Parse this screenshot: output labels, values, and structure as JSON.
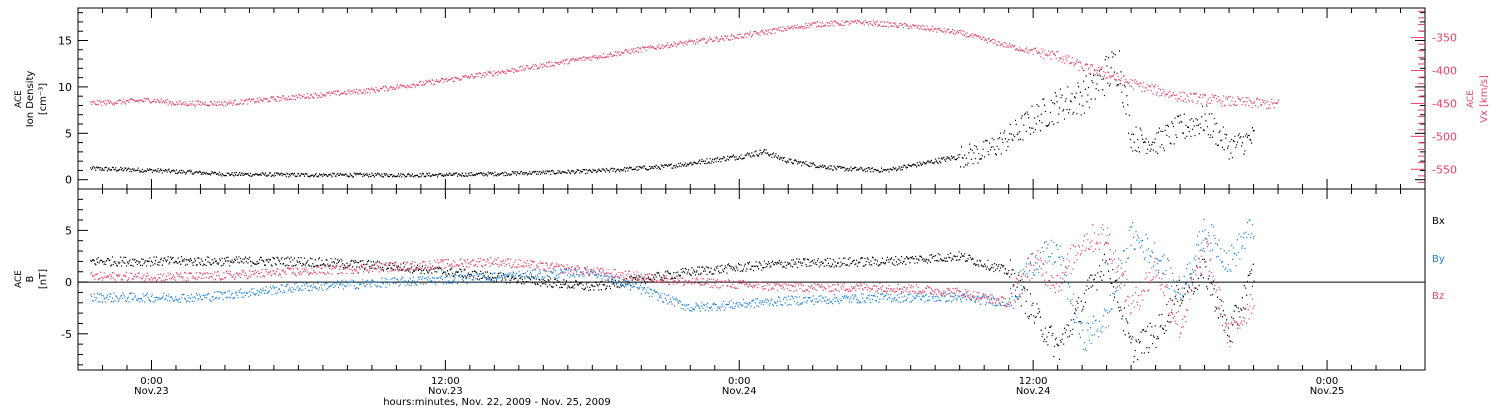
{
  "colors": {
    "black": "#000000",
    "blue": "#1a80e0",
    "pink": "#e8406a"
  },
  "chart_data": [
    {
      "type": "scatter",
      "panel": "top",
      "ylabel_lines": [
        "ACE",
        "Ion Density",
        "[cm⁻³]"
      ],
      "y_ticks": [
        0,
        5,
        10,
        15
      ],
      "ylim": [
        -1,
        18.5
      ],
      "right_ylabel_lines": [
        "ACE",
        "Vx [km/s]"
      ],
      "right_y_ticks": [
        -350,
        -400,
        -450,
        -500,
        -550
      ],
      "right_ylim": [
        -580,
        -305
      ],
      "series": [
        {
          "label": "Ion Density",
          "axis": "left",
          "color": "#000000",
          "x": [
            -2.5,
            0,
            3,
            6,
            9,
            12,
            15,
            18,
            21,
            24,
            25,
            26,
            28,
            30,
            32,
            34,
            35,
            36,
            37,
            38,
            38.5,
            39,
            39.5,
            40,
            41,
            42,
            43,
            44,
            45
          ],
          "y": [
            1.2,
            1.0,
            0.6,
            0.5,
            0.5,
            0.5,
            0.7,
            0.9,
            1.4,
            2.5,
            3.0,
            2.0,
            1.2,
            1.0,
            2.0,
            3.0,
            4.5,
            6.5,
            8.0,
            9.0,
            10.0,
            11.5,
            12.5,
            4.5,
            4.0,
            5.5,
            6.5,
            3.5,
            4.5
          ]
        },
        {
          "label": "Vx",
          "axis": "right",
          "color": "#e8406a",
          "x": [
            -2.5,
            0,
            1,
            3,
            6,
            9,
            12,
            15,
            18,
            21,
            24,
            27,
            29,
            31,
            33,
            35,
            36,
            37,
            38,
            39,
            40,
            42,
            44,
            46
          ],
          "y": [
            -450,
            -445,
            -450,
            -450,
            -440,
            -430,
            -415,
            -398,
            -380,
            -362,
            -348,
            -330,
            -327,
            -333,
            -343,
            -363,
            -372,
            -378,
            -395,
            -405,
            -420,
            -440,
            -447,
            -452
          ]
        }
      ]
    },
    {
      "type": "scatter",
      "panel": "bottom",
      "ylabel_lines": [
        "ACE",
        "B",
        "[nT]"
      ],
      "y_ticks": [
        -5,
        0,
        5
      ],
      "ylim": [
        -8.5,
        9
      ],
      "legend": [
        "Bx",
        "By",
        "Bz"
      ],
      "series": [
        {
          "name": "Bx",
          "color": "#000000",
          "x": [
            -2.5,
            2,
            6,
            10,
            14,
            18,
            22,
            26,
            30,
            33,
            35,
            36,
            37,
            38,
            39,
            40,
            41,
            42,
            43,
            44,
            45
          ],
          "y": [
            2.0,
            2.0,
            2.0,
            1.5,
            0.5,
            -0.5,
            1.0,
            1.8,
            2.0,
            2.5,
            1.0,
            -3.0,
            -6.5,
            -2.0,
            2.5,
            -6.5,
            -5.0,
            -1.0,
            1.0,
            -5.0,
            1.0
          ]
        },
        {
          "name": "By",
          "color": "#1a80e0",
          "x": [
            -2.5,
            2,
            6,
            10,
            14,
            18,
            22,
            26,
            30,
            33,
            35,
            36,
            37,
            38,
            39,
            40,
            41,
            42,
            43,
            44,
            45
          ],
          "y": [
            -1.5,
            -1.5,
            -0.5,
            0.0,
            0.5,
            1.0,
            -2.5,
            -1.8,
            -1.5,
            -1.5,
            -2.0,
            2.0,
            3.0,
            -5.5,
            -3.5,
            4.5,
            2.5,
            -1.0,
            5.0,
            2.0,
            5.5
          ]
        },
        {
          "name": "Bz",
          "color": "#e8406a",
          "x": [
            -2.5,
            2,
            6,
            10,
            14,
            18,
            22,
            26,
            30,
            33,
            35,
            36,
            37,
            38,
            39,
            40,
            41,
            42,
            43,
            44,
            45
          ],
          "y": [
            0.5,
            0.5,
            1.0,
            1.5,
            2.0,
            1.0,
            0.0,
            -0.5,
            -0.5,
            -1.0,
            -2.0,
            2.0,
            0.0,
            4.0,
            4.5,
            -2.5,
            1.5,
            -4.5,
            3.5,
            -5.5,
            -1.5
          ]
        }
      ]
    }
  ],
  "x_axis": {
    "range_hours": [
      -3,
      52
    ],
    "ticks": [
      {
        "h": 0,
        "time": "0:00",
        "date": "Nov.23"
      },
      {
        "h": 12,
        "time": "12:00",
        "date": "Nov.23"
      },
      {
        "h": 24,
        "time": "0:00",
        "date": "Nov.24"
      },
      {
        "h": 36,
        "time": "12:00",
        "date": "Nov.24"
      },
      {
        "h": 48,
        "time": "0:00",
        "date": "Nov.25"
      }
    ],
    "xlabel": "hours:minutes, Nov. 22, 2009 - Nov. 25, 2009"
  }
}
